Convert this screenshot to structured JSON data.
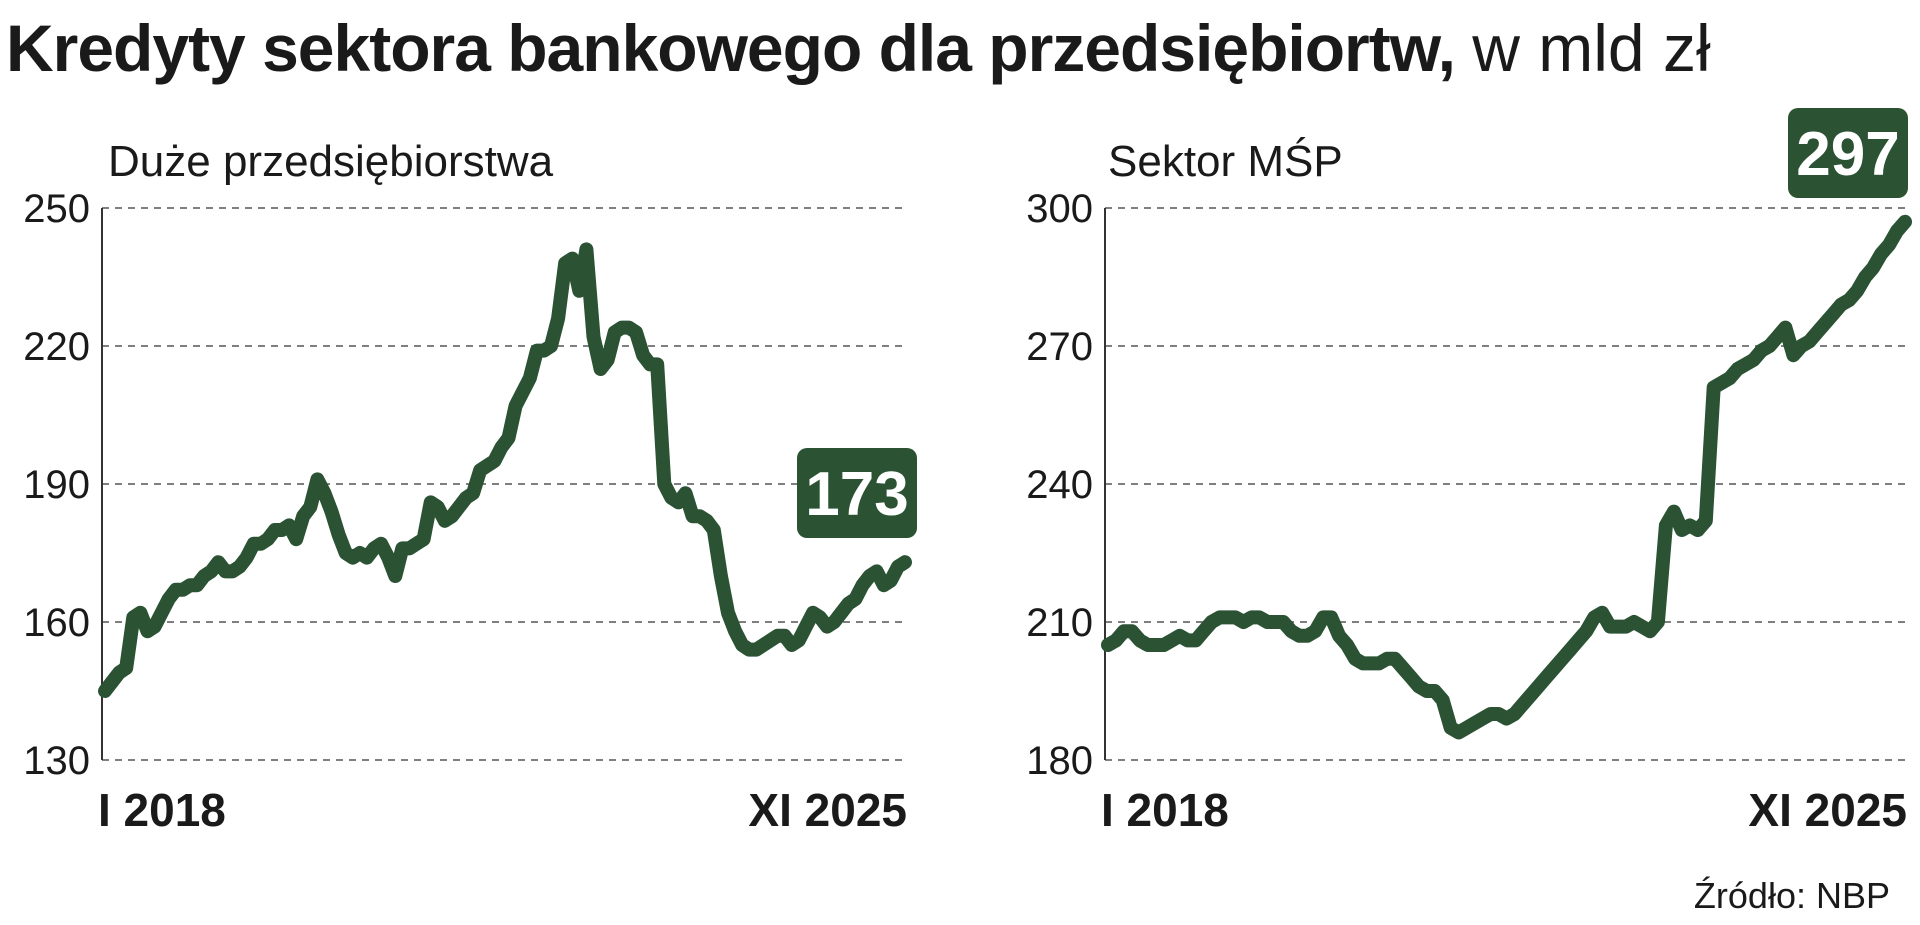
{
  "title": "Kredyty sektora bankowego dla przedsiębiortw,",
  "title_unit": "w mld zł",
  "source": "Źródło: NBP",
  "colors": {
    "line": "#2a5233",
    "badge": "#2a5233",
    "badge_text": "#ffffff",
    "grid": "#555555",
    "text": "#1a1a1a"
  },
  "chart_data": [
    {
      "type": "line",
      "title": "Duże przedsiębiorstwa",
      "x_labels": [
        "I 2018",
        "XI 2025"
      ],
      "y_ticks": [
        130,
        160,
        190,
        220,
        250
      ],
      "ylim": [
        130,
        250
      ],
      "grid": true,
      "last_value_label": "173",
      "x_range": [
        "2018-01",
        "2025-11"
      ],
      "series": [
        {
          "values": [
            145,
            147,
            149,
            150,
            161,
            162,
            158,
            159,
            162,
            165,
            167,
            167,
            168,
            168,
            170,
            171,
            173,
            171,
            171,
            172,
            174,
            177,
            177,
            178,
            180,
            180,
            181,
            178,
            183,
            185,
            191,
            188,
            184,
            179,
            175,
            174,
            175,
            174,
            176,
            177,
            174,
            170,
            176,
            176,
            177,
            178,
            186,
            185,
            182,
            183,
            185,
            187,
            188,
            193,
            194,
            195,
            198,
            200,
            207,
            210,
            213,
            219,
            219,
            220,
            226,
            238,
            239,
            232,
            241,
            222,
            215,
            217,
            223,
            224,
            224,
            223,
            218,
            216,
            216,
            190,
            187,
            186,
            188,
            183,
            183,
            182,
            180,
            170,
            162,
            158,
            155,
            154,
            154,
            155,
            156,
            157,
            157,
            155,
            156,
            159,
            162,
            161,
            159,
            160,
            162,
            164,
            165,
            168,
            170,
            171,
            168,
            169,
            172,
            173
          ]
        }
      ]
    },
    {
      "type": "line",
      "title": "Sektor MŚP",
      "x_labels": [
        "I 2018",
        "XI 2025"
      ],
      "y_ticks": [
        180,
        210,
        240,
        270,
        300
      ],
      "ylim": [
        180,
        300
      ],
      "grid": true,
      "last_value_label": "297",
      "x_range": [
        "2018-01",
        "2025-11"
      ],
      "series": [
        {
          "values": [
            205,
            206,
            208,
            208,
            206,
            205,
            205,
            205,
            206,
            207,
            206,
            206,
            208,
            210,
            211,
            211,
            211,
            210,
            211,
            211,
            210,
            210,
            210,
            208,
            207,
            207,
            208,
            211,
            211,
            207,
            205,
            202,
            201,
            201,
            201,
            202,
            202,
            200,
            198,
            196,
            195,
            195,
            193,
            187,
            186,
            187,
            188,
            189,
            190,
            190,
            189,
            190,
            192,
            194,
            196,
            198,
            200,
            202,
            204,
            206,
            208,
            211,
            212,
            209,
            209,
            209,
            210,
            209,
            208,
            210,
            231,
            234,
            230,
            231,
            230,
            232,
            261,
            262,
            263,
            265,
            266,
            267,
            269,
            270,
            272,
            274,
            268,
            270,
            271,
            273,
            275,
            277,
            279,
            280,
            282,
            285,
            287,
            290,
            292,
            295,
            297
          ]
        }
      ]
    }
  ]
}
